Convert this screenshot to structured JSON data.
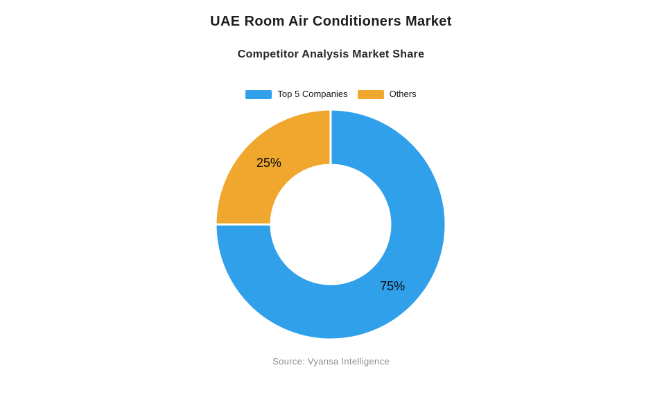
{
  "header": {
    "title": "UAE Room Air Conditioners Market",
    "subtitle": "Competitor Analysis Market Share"
  },
  "chart_data": {
    "type": "pie",
    "variant": "donut",
    "title": "UAE Room Air Conditioners Market",
    "subtitle": "Competitor Analysis Market Share",
    "categories": [
      "Top 5 Companies",
      "Others"
    ],
    "values": [
      75,
      25
    ],
    "value_labels": [
      "75%",
      "25%"
    ],
    "colors": [
      "#2FA0E9",
      "#F0A72E"
    ],
    "legend_position": "top",
    "start_angle_deg": 0,
    "direction": "clockwise",
    "inner_radius_ratio": 0.52,
    "slice_border_color": "#ffffff"
  },
  "footer": {
    "source": "Source: Vyansa Intelligence"
  }
}
